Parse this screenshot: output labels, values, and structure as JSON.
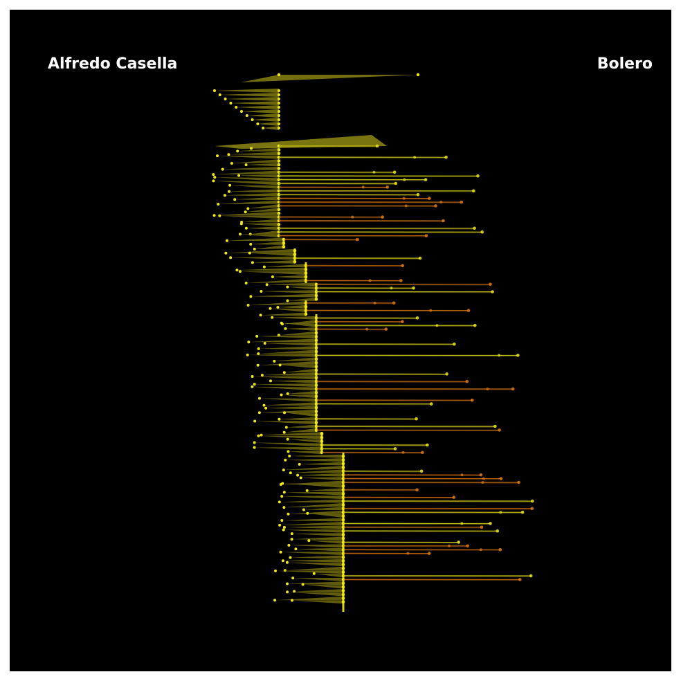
{
  "header": {
    "composer": "Alfredo Casella",
    "piece": "Bolero"
  },
  "palette": {
    "background": "#000000",
    "frame": "#ffffff",
    "primary": "#f0e81a",
    "primary_dim": "#807a10",
    "accent": "#e07a10",
    "accent_dim": "#7a4208",
    "text": "#ffffff"
  }
}
